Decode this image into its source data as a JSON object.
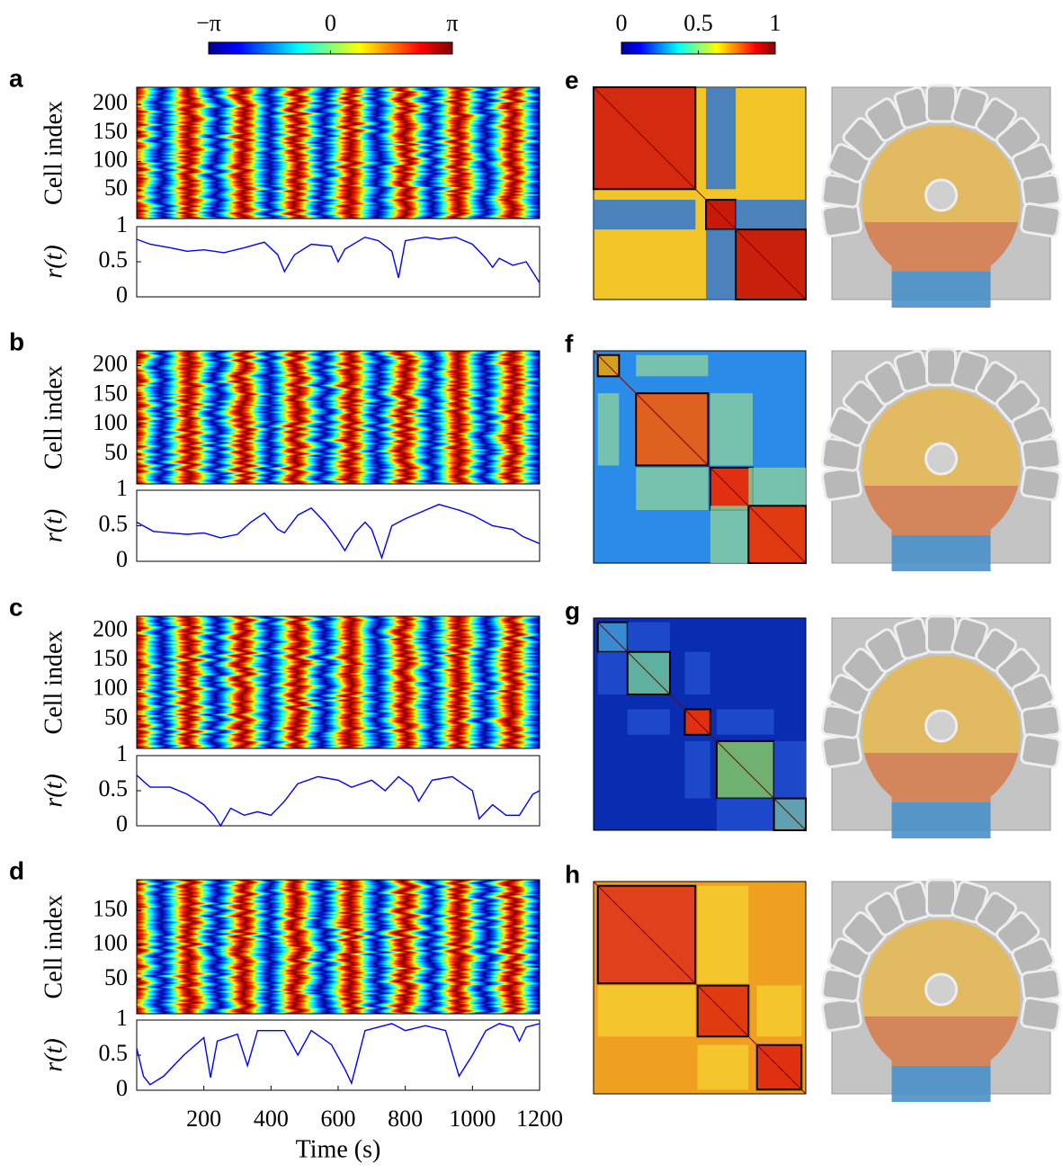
{
  "chart_data": [
    {
      "type": "colorbar",
      "lim": [
        -3.14159,
        3.14159
      ],
      "ticks": [
        {
          "value": -3.14159,
          "label": "−π"
        },
        0,
        {
          "value": 3.14159,
          "label": "π"
        }
      ]
    },
    {
      "type": "colorbar",
      "lim": [
        0,
        1
      ],
      "ticks": [
        0,
        0.5,
        1
      ]
    },
    {
      "type": "raster",
      "panel": "a",
      "ylabel": "Cell index",
      "ylim": [
        0,
        230
      ],
      "yticks": [
        50,
        100,
        150,
        200
      ]
    },
    {
      "type": "line",
      "ylabel": "r(t)",
      "color": "#0000ff",
      "xlim": [
        0,
        1200
      ],
      "ylim": [
        0,
        1
      ],
      "yticks": [
        0,
        0.5,
        1
      ],
      "x": [
        0,
        40,
        100,
        150,
        200,
        260,
        320,
        380,
        420,
        440,
        470,
        520,
        580,
        600,
        620,
        680,
        720,
        760,
        780,
        800,
        860,
        900,
        950,
        1000,
        1040,
        1060,
        1080,
        1120,
        1160,
        1200
      ],
      "values": [
        0.82,
        0.75,
        0.7,
        0.65,
        0.67,
        0.63,
        0.7,
        0.78,
        0.6,
        0.36,
        0.6,
        0.75,
        0.72,
        0.5,
        0.68,
        0.85,
        0.8,
        0.65,
        0.27,
        0.8,
        0.85,
        0.82,
        0.85,
        0.75,
        0.55,
        0.42,
        0.55,
        0.45,
        0.5,
        0.2
      ]
    },
    {
      "type": "raster",
      "panel": "b",
      "ylabel": "Cell index",
      "ylim": [
        0,
        225
      ],
      "yticks": [
        50,
        100,
        150,
        200
      ]
    },
    {
      "type": "line",
      "ylabel": "r(t)",
      "color": "#0000ff",
      "xlim": [
        0,
        1200
      ],
      "ylim": [
        0,
        1
      ],
      "yticks": [
        0,
        0.5,
        1
      ],
      "x": [
        0,
        50,
        100,
        150,
        200,
        250,
        300,
        340,
        380,
        420,
        440,
        480,
        520,
        560,
        600,
        620,
        650,
        680,
        700,
        730,
        760,
        800,
        860,
        900,
        960,
        1000,
        1060,
        1120,
        1150,
        1200
      ],
      "values": [
        0.55,
        0.42,
        0.4,
        0.38,
        0.4,
        0.33,
        0.38,
        0.55,
        0.68,
        0.45,
        0.4,
        0.65,
        0.75,
        0.55,
        0.3,
        0.15,
        0.4,
        0.55,
        0.45,
        0.05,
        0.5,
        0.6,
        0.72,
        0.8,
        0.72,
        0.65,
        0.5,
        0.45,
        0.35,
        0.25
      ]
    },
    {
      "type": "raster",
      "panel": "c",
      "ylabel": "Cell index",
      "ylim": [
        0,
        225
      ],
      "yticks": [
        50,
        100,
        150,
        200
      ]
    },
    {
      "type": "line",
      "ylabel": "r(t)",
      "color": "#0000ff",
      "xlim": [
        0,
        1200
      ],
      "ylim": [
        0,
        1
      ],
      "yticks": [
        0,
        0.5,
        1
      ],
      "x": [
        0,
        40,
        100,
        150,
        200,
        230,
        250,
        280,
        320,
        360,
        400,
        440,
        480,
        540,
        600,
        640,
        700,
        740,
        780,
        820,
        840,
        880,
        940,
        1000,
        1020,
        1060,
        1100,
        1140,
        1180,
        1200
      ],
      "values": [
        0.72,
        0.55,
        0.55,
        0.45,
        0.3,
        0.15,
        0.0,
        0.25,
        0.15,
        0.2,
        0.15,
        0.35,
        0.6,
        0.7,
        0.65,
        0.55,
        0.65,
        0.5,
        0.7,
        0.55,
        0.35,
        0.65,
        0.7,
        0.5,
        0.1,
        0.3,
        0.15,
        0.15,
        0.45,
        0.5
      ]
    },
    {
      "type": "raster",
      "panel": "d",
      "ylabel": "Cell index",
      "ylim": [
        0,
        195
      ],
      "yticks": [
        50,
        100,
        150
      ]
    },
    {
      "type": "line",
      "ylabel": "r(t)",
      "xlabel": "Time (s)",
      "color": "#0000ff",
      "xlim": [
        0,
        1200
      ],
      "ylim": [
        0,
        1
      ],
      "yticks": [
        0,
        0.5,
        1
      ],
      "xticks": [
        200,
        400,
        600,
        800,
        1000,
        1200
      ],
      "x": [
        0,
        20,
        40,
        80,
        140,
        200,
        220,
        240,
        300,
        330,
        360,
        440,
        480,
        520,
        580,
        620,
        640,
        680,
        760,
        800,
        860,
        920,
        960,
        1000,
        1040,
        1080,
        1120,
        1140,
        1160,
        1200
      ],
      "values": [
        0.6,
        0.2,
        0.08,
        0.2,
        0.5,
        0.75,
        0.18,
        0.7,
        0.8,
        0.35,
        0.85,
        0.85,
        0.5,
        0.85,
        0.65,
        0.3,
        0.1,
        0.85,
        0.95,
        0.85,
        0.92,
        0.85,
        0.2,
        0.5,
        0.85,
        0.95,
        0.9,
        0.7,
        0.9,
        0.95
      ]
    },
    {
      "type": "matrix",
      "panel": "e"
    },
    {
      "type": "matrix",
      "panel": "f"
    },
    {
      "type": "matrix",
      "panel": "g"
    },
    {
      "type": "matrix",
      "panel": "h"
    }
  ]
}
